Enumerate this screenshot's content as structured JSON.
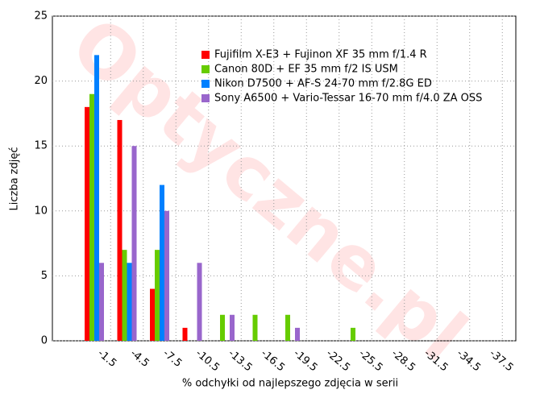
{
  "chart_data": {
    "type": "bar",
    "x_label": "% odchyłki od najlepszego zdjęcia w serii",
    "y_label": "Liczba zdjęć",
    "watermark": "Optyczne.pl",
    "categories": [
      "-1.5",
      "-4.5",
      "-7.5",
      "-10.5",
      "-13.5",
      "-16.5",
      "-19.5",
      "-22.5",
      "-25.5",
      "-28.5",
      "-31.5",
      "-34.5",
      "-37.5"
    ],
    "series": [
      {
        "name": "Fujifilm X-E3 + Fujinon XF 35 mm f/1.4 R",
        "color": "#ff0000",
        "values": [
          18,
          17,
          4,
          1,
          0,
          0,
          0,
          0,
          0,
          0,
          0,
          0,
          0
        ]
      },
      {
        "name": "Canon 80D + EF 35 mm f/2 IS USM",
        "color": "#66cc00",
        "values": [
          19,
          7,
          7,
          0,
          2,
          2,
          2,
          0,
          1,
          0,
          0,
          0,
          0
        ]
      },
      {
        "name": "Nikon D7500 + AF-S 24-70 mm f/2.8G ED",
        "color": "#0080ff",
        "values": [
          22,
          6,
          12,
          0,
          0,
          0,
          0,
          0,
          0,
          0,
          0,
          0,
          0
        ]
      },
      {
        "name": "Sony A6500 + Vario-Tessar 16-70 mm f/4.0 ZA OSS",
        "color": "#9966cc",
        "values": [
          6,
          15,
          10,
          6,
          2,
          0,
          1,
          0,
          0,
          0,
          0,
          0,
          0
        ]
      }
    ],
    "ylim": [
      0,
      25
    ],
    "yticks": [
      0,
      5,
      10,
      15,
      20,
      25
    ],
    "grid": true,
    "legend": "top-right"
  }
}
